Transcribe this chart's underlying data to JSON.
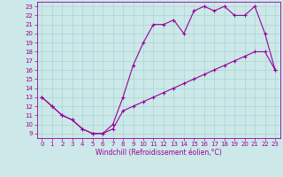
{
  "title": "",
  "xlabel": "Windchill (Refroidissement éolien,°C)",
  "xlim": [
    -0.5,
    23.5
  ],
  "ylim": [
    8.5,
    23.5
  ],
  "xticks": [
    0,
    1,
    2,
    3,
    4,
    5,
    6,
    7,
    8,
    9,
    10,
    11,
    12,
    13,
    14,
    15,
    16,
    17,
    18,
    19,
    20,
    21,
    22,
    23
  ],
  "yticks": [
    9,
    10,
    11,
    12,
    13,
    14,
    15,
    16,
    17,
    18,
    19,
    20,
    21,
    22,
    23
  ],
  "line_color": "#990099",
  "bg_color": "#cce8e8",
  "grid_color": "#aad4d4",
  "line1_x": [
    0,
    1,
    2,
    3,
    4,
    5,
    6,
    7,
    8,
    9,
    10,
    11,
    12,
    13,
    14,
    15,
    16,
    17,
    18,
    19,
    20,
    21,
    22,
    23
  ],
  "line1_y": [
    13,
    12,
    11,
    10.5,
    9.5,
    9,
    9,
    10,
    13,
    16.5,
    19,
    21,
    21,
    21.5,
    20,
    22.5,
    23,
    22.5,
    23,
    22,
    22,
    23,
    20,
    16
  ],
  "line2_x": [
    0,
    1,
    2,
    3,
    4,
    5,
    6,
    7,
    8,
    9,
    10,
    11,
    12,
    13,
    14,
    15,
    16,
    17,
    18,
    19,
    20,
    21,
    22,
    23
  ],
  "line2_y": [
    13,
    12,
    11,
    10.5,
    9.5,
    9,
    9,
    9.5,
    11.5,
    12,
    12.5,
    13,
    13.5,
    14,
    14.5,
    15,
    15.5,
    16,
    16.5,
    17,
    17.5,
    18,
    18,
    16
  ],
  "tick_fontsize": 5.0,
  "xlabel_fontsize": 5.5,
  "linewidth": 0.8,
  "markersize": 3.0
}
